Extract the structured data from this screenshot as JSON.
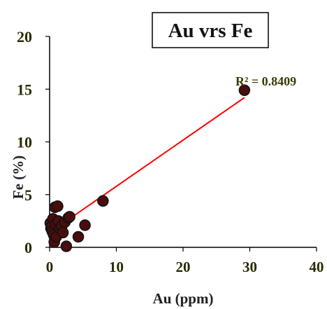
{
  "chart_data": {
    "type": "scatter",
    "title": "Au vrs Fe",
    "xlabel": "Au (ppm)",
    "ylabel": "Fe (%)",
    "xlim": [
      0,
      40
    ],
    "ylim": [
      0,
      20
    ],
    "xticks": [
      0,
      10,
      20,
      30,
      40
    ],
    "yticks": [
      0,
      5,
      10,
      15,
      20
    ],
    "xtick_labels": [
      "0",
      "10",
      "20",
      "30",
      "40"
    ],
    "ytick_labels": [
      "0",
      "5",
      "10",
      "15",
      "20"
    ],
    "grid": false,
    "legend": "none",
    "annotation": "R² = 0.8409",
    "points": [
      {
        "x": 0.1,
        "y": 2.3
      },
      {
        "x": 0.2,
        "y": 1.8
      },
      {
        "x": 0.3,
        "y": 2.0
      },
      {
        "x": 0.4,
        "y": 1.5
      },
      {
        "x": 0.5,
        "y": 2.7
      },
      {
        "x": 0.6,
        "y": 1.2
      },
      {
        "x": 0.7,
        "y": 0.5
      },
      {
        "x": 0.8,
        "y": 3.8
      },
      {
        "x": 0.9,
        "y": 2.2
      },
      {
        "x": 1.0,
        "y": 1.0
      },
      {
        "x": 1.2,
        "y": 3.9
      },
      {
        "x": 1.3,
        "y": 2.5
      },
      {
        "x": 1.5,
        "y": 1.8
      },
      {
        "x": 1.8,
        "y": 2.0
      },
      {
        "x": 2.0,
        "y": 1.4
      },
      {
        "x": 2.3,
        "y": 2.4
      },
      {
        "x": 2.5,
        "y": 0.1
      },
      {
        "x": 2.8,
        "y": 2.8
      },
      {
        "x": 3.0,
        "y": 2.9
      },
      {
        "x": 4.3,
        "y": 1.0
      },
      {
        "x": 5.3,
        "y": 2.1
      },
      {
        "x": 8.0,
        "y": 4.4
      },
      {
        "x": 29.2,
        "y": 14.9
      }
    ],
    "trendline": {
      "x": [
        0,
        29.2
      ],
      "y": [
        1.4,
        14.2
      ]
    },
    "colors": {
      "marker_fill": "#4a0d0d",
      "marker_edge": "#111111",
      "trendline": "#ff0000",
      "axis": "#000000"
    }
  }
}
